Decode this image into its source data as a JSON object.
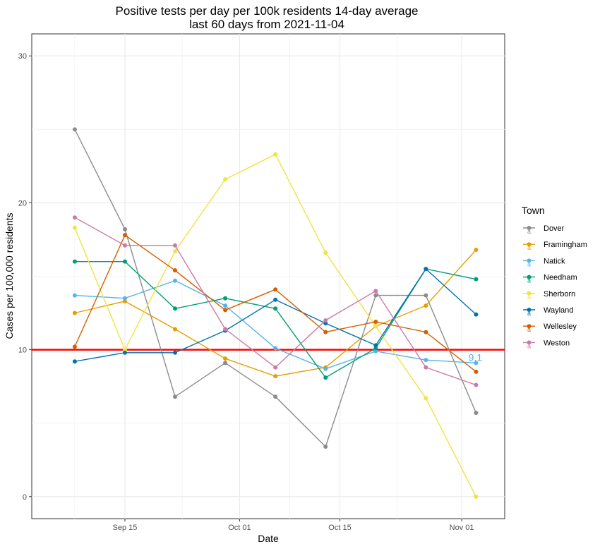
{
  "chart_data": {
    "type": "line",
    "title": "Positive tests per day per 100k residents 14-day average",
    "subtitle": "last 60 days from 2021-11-04",
    "xlabel": "Date",
    "ylabel": "Cases per 100,000 residents",
    "x": [
      "2021-09-08",
      "2021-09-15",
      "2021-09-22",
      "2021-09-29",
      "2021-10-06",
      "2021-10-13",
      "2021-10-20",
      "2021-10-27",
      "2021-11-03"
    ],
    "xlim": [
      "2021-09-02",
      "2021-11-07"
    ],
    "ylim": [
      -1.5,
      31.5
    ],
    "x_ticks": [
      {
        "date": "2021-09-15",
        "label": "Sep 15"
      },
      {
        "date": "2021-10-01",
        "label": "Oct 01"
      },
      {
        "date": "2021-10-15",
        "label": "Oct 15"
      },
      {
        "date": "2021-11-01",
        "label": "Nov 01"
      }
    ],
    "x_minor_grid": [
      "2021-09-08",
      "2021-09-23",
      "2021-10-08",
      "2021-10-23"
    ],
    "y_ticks": [
      0,
      10,
      20,
      30
    ],
    "grid": true,
    "reference_line": {
      "y": 10,
      "color": "#ff0000"
    },
    "annotation": {
      "text": "9.1",
      "x": "2021-11-03",
      "y": 9.1,
      "color": "#56b4e9"
    },
    "legend": {
      "title": "Town",
      "placement": "right"
    },
    "series": [
      {
        "name": "Dover",
        "color": "#8c8c8c",
        "values": [
          25.0,
          18.2,
          6.8,
          9.1,
          6.8,
          3.4,
          13.7,
          13.7,
          5.7
        ]
      },
      {
        "name": "Framingham",
        "color": "#e69f00",
        "values": [
          12.5,
          13.3,
          11.4,
          9.4,
          8.2,
          8.8,
          11.6,
          13.0,
          16.8
        ]
      },
      {
        "name": "Natick",
        "color": "#56b4e9",
        "values": [
          13.7,
          13.5,
          14.7,
          13.0,
          10.1,
          8.7,
          9.9,
          9.3,
          9.1
        ]
      },
      {
        "name": "Needham",
        "color": "#009e73",
        "values": [
          16.0,
          16.0,
          12.8,
          13.5,
          12.8,
          8.1,
          10.1,
          15.5,
          14.8
        ]
      },
      {
        "name": "Sherborn",
        "color": "#f0e442",
        "values": [
          18.3,
          10.0,
          16.7,
          21.6,
          23.3,
          16.6,
          11.6,
          6.7,
          0.0
        ]
      },
      {
        "name": "Wayland",
        "color": "#0072b2",
        "values": [
          9.2,
          9.8,
          9.8,
          11.3,
          13.4,
          11.8,
          10.3,
          15.5,
          12.4
        ]
      },
      {
        "name": "Wellesley",
        "color": "#d55e00",
        "values": [
          10.2,
          17.8,
          15.4,
          12.7,
          14.1,
          11.2,
          11.9,
          11.2,
          8.5
        ]
      },
      {
        "name": "Weston",
        "color": "#cc79a7",
        "values": [
          19.0,
          17.1,
          17.1,
          11.4,
          8.8,
          12.0,
          14.0,
          8.8,
          7.6
        ]
      }
    ]
  }
}
